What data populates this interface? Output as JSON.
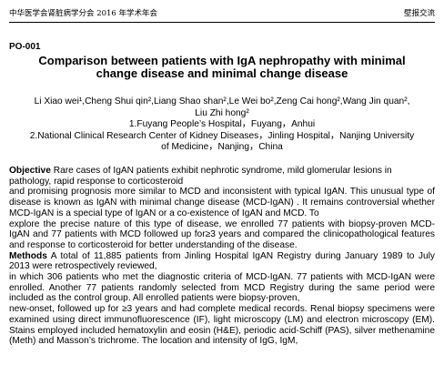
{
  "header": {
    "left": "中华医学会肾脏病学分会 2016 年学术年会",
    "right": "壁报交流"
  },
  "paper": {
    "code": "PO-001",
    "title_line1": "Comparison between patients with IgA nephropathy with minimal",
    "title_line2": "change  disease and minimal change disease",
    "authors_line1": "Li Xiao wei¹,Cheng Shui qin²,Liang Shao shan²,Le Wei bo²,Zeng Cai hong²,Wang Jin quan²,",
    "authors_line2": "Liu Zhi hong²",
    "affil_line1": "1.Fuyang People’s Hospital，Fuyang，Anhui",
    "affil_line2": "2.National Clinical Research Center of Kidney Diseases，Jinling Hospital，Nanjing University",
    "affil_line3": "of Medicine，Nanjing，China"
  },
  "abstract": {
    "objective_label": "Objective",
    "objective_l1": "  Rare cases of IgAN patients exhibit nephrotic syndrome, mild glomerular lesions in",
    "objective_l2": "pathology, rapid response to corticosteroid",
    "objective_l3": "and promising prognosis more similar to MCD and inconsistent with typical IgAN. This unusual type of disease is known as IgAN with minimal change disease (MCD-IgAN) . It remains controversial whether MCD-IgAN is a special type of IgAN or a co-existence of IgAN and MCD. To",
    "objective_l4": "explore the precise nature of this type of disease, we enrolled 77 patients with biopsy-proven MCD-IgAN and 77 patients with MCD followed up for≥3 years and compared the clinicopathological features and response to corticosteroid for better understanding of the disease.",
    "methods_label": "Methods",
    "methods_l1": "  A total of 11,885 patients from Jinling Hospital IgAN Registry during January 1989 to July 2013 were retrospectively reviewed,",
    "methods_l2": "in which 306 patients who met the diagnostic criteria of MCD-IgAN. 77 patients with MCD-IgAN were enrolled. Another 77 patients randomly selected from MCD Registry during the same period were included as the control group. All enrolled patients were biopsy-proven,",
    "methods_l3": "new-onset, followed up for ≥3 years and had complete medical records. Renal biopsy specimens were examined using direct immunofluorescence (IF), light microscopy (LM) and electron microscopy (EM). Stains employed included hematoxylin and eosin (H&E), periodic acid-Schiff (PAS), silver methenamine (Meth) and Masson’s trichrome. The location and intensity of IgG, IgM,"
  }
}
